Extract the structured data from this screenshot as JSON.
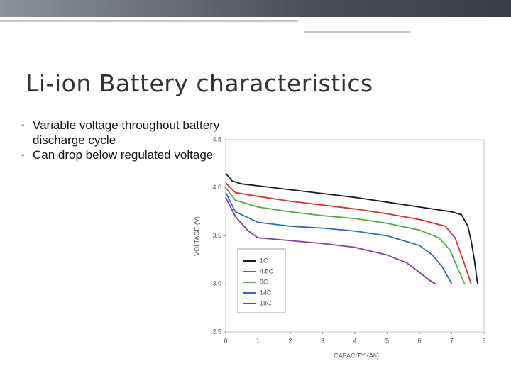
{
  "slide": {
    "title": "Li-ion Battery characteristics",
    "bullets": [
      "Variable voltage throughout battery discharge cycle",
      "Can drop below regulated voltage"
    ]
  },
  "chart_data": {
    "type": "line",
    "xlabel": "CAPACITY (Ah)",
    "ylabel": "VOLTAGE (V)",
    "xlim": [
      0,
      8
    ],
    "xticks": [
      0,
      1,
      2,
      3,
      4,
      5,
      6,
      7,
      8
    ],
    "ylim": [
      2.5,
      4.5
    ],
    "yticks": [
      2.5,
      {
        "value": 3,
        "label": "3.0"
      },
      3.5,
      {
        "value": 4,
        "label": "4.0"
      },
      4.5
    ],
    "grid": false,
    "legend": "lower left",
    "series": [
      {
        "name": "1C",
        "color": "#1a1a1a",
        "x": [
          0,
          0.2,
          0.5,
          1,
          2,
          3,
          4,
          5,
          6,
          7,
          7.3,
          7.5,
          7.6,
          7.7,
          7.8
        ],
        "values": [
          4.15,
          4.07,
          4.04,
          4.02,
          3.98,
          3.94,
          3.9,
          3.85,
          3.8,
          3.75,
          3.72,
          3.6,
          3.45,
          3.25,
          3.0
        ]
      },
      {
        "name": "4.5C",
        "color": "#d9302b",
        "x": [
          0,
          0.3,
          1,
          2,
          3,
          4,
          5,
          6,
          6.8,
          7.1,
          7.35,
          7.6
        ],
        "values": [
          4.05,
          3.95,
          3.91,
          3.86,
          3.82,
          3.78,
          3.73,
          3.67,
          3.6,
          3.48,
          3.25,
          3.0
        ]
      },
      {
        "name": "9C",
        "color": "#4caf3a",
        "x": [
          0,
          0.3,
          1,
          2,
          3,
          4,
          5,
          6,
          6.6,
          6.95,
          7.2,
          7.4
        ],
        "values": [
          4.0,
          3.87,
          3.8,
          3.75,
          3.71,
          3.68,
          3.63,
          3.56,
          3.48,
          3.35,
          3.15,
          3.0
        ]
      },
      {
        "name": "14C",
        "color": "#2a6fb5",
        "x": [
          0,
          0.3,
          1,
          2,
          3,
          4,
          5,
          6,
          6.4,
          6.7,
          6.9,
          7.0
        ],
        "values": [
          3.95,
          3.75,
          3.64,
          3.6,
          3.58,
          3.55,
          3.5,
          3.4,
          3.3,
          3.18,
          3.06,
          3.0
        ]
      },
      {
        "name": "18C",
        "color": "#8b3a9c",
        "x": [
          0,
          0.3,
          0.7,
          1,
          2,
          3,
          4,
          5,
          5.6,
          6.0,
          6.3,
          6.5
        ],
        "values": [
          3.9,
          3.7,
          3.55,
          3.48,
          3.45,
          3.42,
          3.38,
          3.3,
          3.22,
          3.12,
          3.04,
          3.0
        ]
      }
    ]
  }
}
